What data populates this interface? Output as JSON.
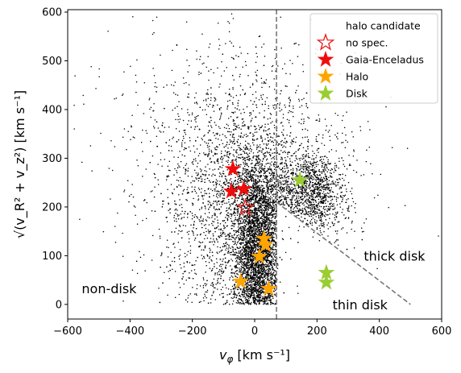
{
  "chart_data": {
    "type": "scatter",
    "xlabel": "v_φ [km s⁻¹]",
    "ylabel": "√(v_R² + v_z²) [km s⁻¹]",
    "xlim": [
      -600,
      600
    ],
    "ylim": [
      -30,
      605
    ],
    "xticks": [
      -600,
      -400,
      -200,
      0,
      200,
      400,
      600
    ],
    "yticks": [
      0,
      100,
      200,
      300,
      400,
      500,
      600
    ],
    "grid": false,
    "legend_position": "top-right",
    "background_scatter": {
      "name": "halo candidate",
      "color": "#000000",
      "marker": "small dot",
      "approx_count": 9000
    },
    "divider_lines": {
      "vertical_x": 70,
      "diagonal": [
        [
          70,
          210
        ],
        [
          500,
          0
        ]
      ],
      "style": "dashed",
      "color": "#777777"
    },
    "series": [
      {
        "name": "no spec.",
        "marker": "open star",
        "color": "#e8191a",
        "points": [
          [
            -30,
            198
          ]
        ]
      },
      {
        "name": "Gaia-Enceladus",
        "marker": "filled star",
        "color": "#f20b0b",
        "points": [
          [
            -70,
            278
          ],
          [
            -35,
            237
          ],
          [
            -75,
            232
          ]
        ]
      },
      {
        "name": "Halo",
        "marker": "filled star",
        "color": "#ffa500",
        "points": [
          [
            30,
            135
          ],
          [
            35,
            122
          ],
          [
            15,
            98
          ],
          [
            -45,
            47
          ],
          [
            45,
            32
          ]
        ]
      },
      {
        "name": "Disk",
        "marker": "filled star",
        "color": "#9acd32",
        "points": [
          [
            145,
            255
          ],
          [
            230,
            65
          ],
          [
            230,
            45
          ]
        ]
      }
    ],
    "annotations": [
      {
        "text": "non-disk",
        "x": -555,
        "y": 33
      },
      {
        "text": "thick disk",
        "x": 350,
        "y": 100
      },
      {
        "text": "thin disk",
        "x": 250,
        "y": 0
      }
    ]
  }
}
